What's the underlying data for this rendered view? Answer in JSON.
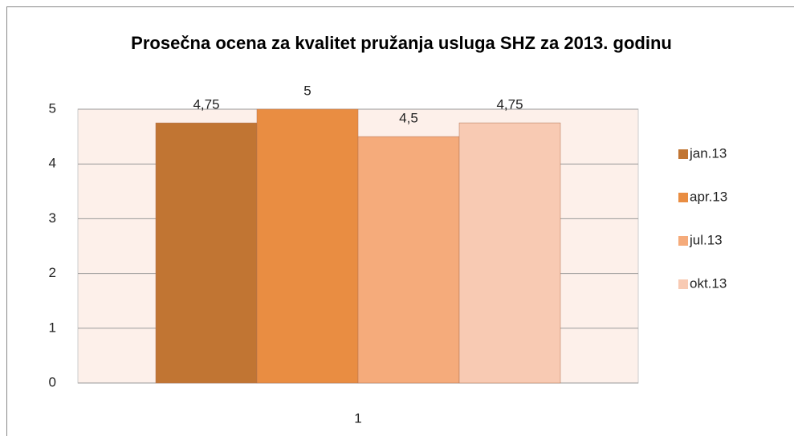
{
  "chart_data": {
    "type": "bar",
    "title": "Prosečna ocena za kvalitet pružanja usluga SHZ za 2013. godinu",
    "categories": [
      "1"
    ],
    "series": [
      {
        "name": "jan.13",
        "color": "#c17533",
        "values": [
          4.75
        ],
        "value_labels": [
          "4,75"
        ]
      },
      {
        "name": "apr.13",
        "color": "#e98d42",
        "values": [
          5
        ],
        "value_labels": [
          "5"
        ]
      },
      {
        "name": "jul.13",
        "color": "#f5ab7b",
        "values": [
          4.5
        ],
        "value_labels": [
          "4,5"
        ]
      },
      {
        "name": "okt.13",
        "color": "#f8cab3",
        "values": [
          4.75
        ],
        "value_labels": [
          "4,75"
        ]
      }
    ],
    "ylim": [
      0,
      5
    ],
    "yticks": [
      0,
      1,
      2,
      3,
      4,
      5
    ],
    "grid": true,
    "legend": "right"
  }
}
